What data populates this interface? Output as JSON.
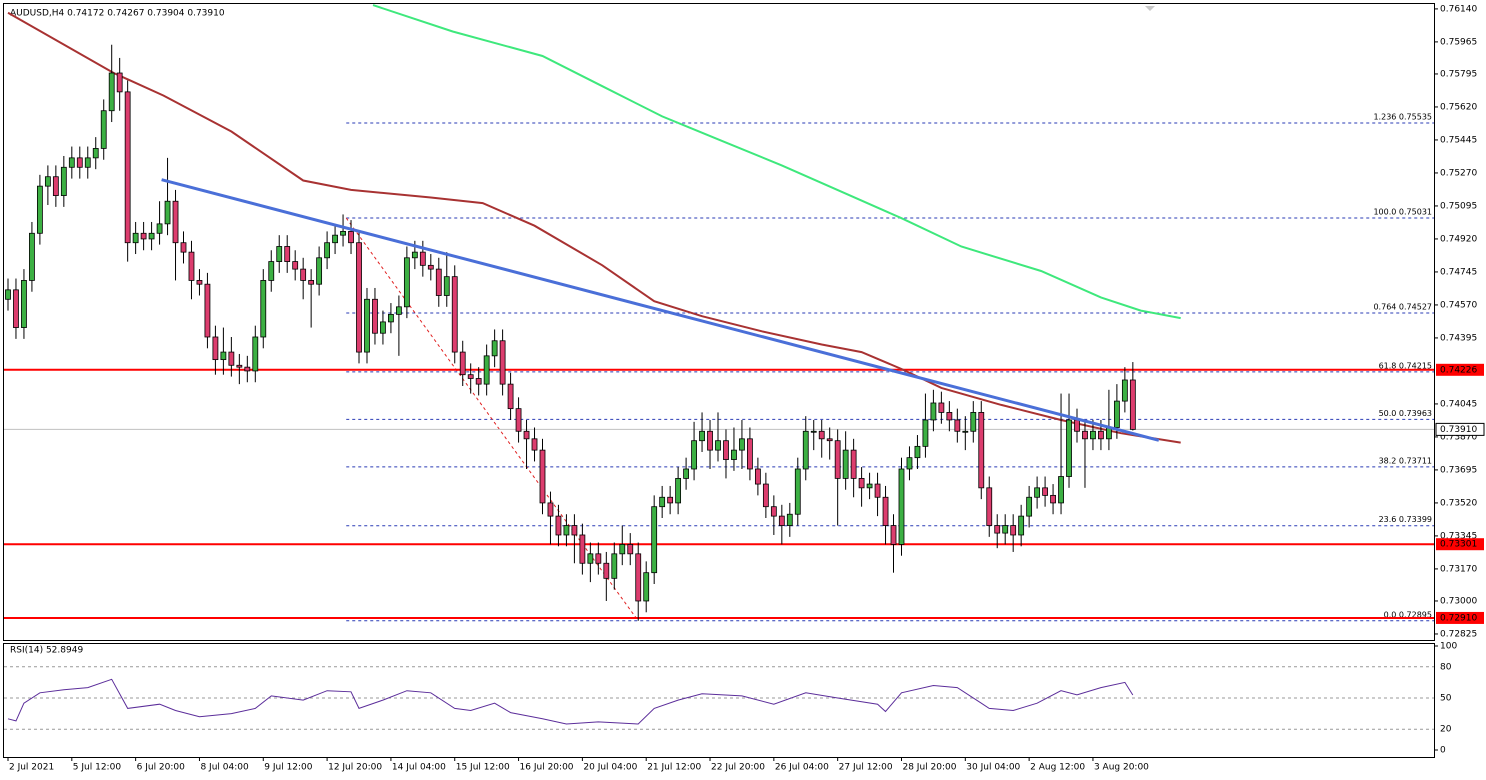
{
  "chart_data": {
    "type": "candlestick",
    "title": "AUDUSD,H4  0.74172 0.74267 0.73904 0.73910",
    "up_color": "#3cb043",
    "down_color": "#dc3d6e",
    "ylim": [
      0.72793,
      0.76166
    ],
    "yticks": [
      {
        "value": 0.7614,
        "label": "0.76140"
      },
      0.75965,
      0.75795,
      {
        "value": 0.7562,
        "label": "0.75620"
      },
      0.75445,
      {
        "value": 0.7527,
        "label": "0.75270"
      },
      0.75095,
      {
        "value": 0.7492,
        "label": "0.74920"
      },
      0.74745,
      {
        "value": 0.7457,
        "label": "0.74570"
      },
      0.74395,
      0.74045,
      {
        "value": 0.7387,
        "label": "0.73870"
      },
      0.73695,
      {
        "value": 0.7352,
        "label": "0.73520"
      },
      0.73345,
      {
        "value": 0.7317,
        "label": "0.73170"
      },
      {
        "value": 0.73,
        "label": "0.73000"
      },
      0.72825
    ],
    "xlim": [
      -0.5,
      178.75
    ],
    "xticks": [
      {
        "value": 0,
        "label": "2 Jul 2021"
      },
      {
        "value": 8,
        "label": "5 Jul 12:00"
      },
      {
        "value": 16,
        "label": "6 Jul 20:00"
      },
      {
        "value": 24,
        "label": "8 Jul 04:00"
      },
      {
        "value": 32,
        "label": "9 Jul 12:00"
      },
      {
        "value": 40,
        "label": "12 Jul 20:00"
      },
      {
        "value": 48,
        "label": "14 Jul 04:00"
      },
      {
        "value": 56,
        "label": "15 Jul 12:00"
      },
      {
        "value": 64,
        "label": "16 Jul 20:00"
      },
      {
        "value": 72,
        "label": "20 Jul 04:00"
      },
      {
        "value": 80,
        "label": "21 Jul 12:00"
      },
      {
        "value": 88,
        "label": "22 Jul 20:00"
      },
      {
        "value": 96,
        "label": "26 Jul 04:00"
      },
      {
        "value": 104,
        "label": "27 Jul 12:00"
      },
      {
        "value": 112,
        "label": "28 Jul 20:00"
      },
      {
        "value": 120,
        "label": "30 Jul 04:00"
      },
      {
        "value": 128,
        "label": "2 Aug 12:00"
      },
      {
        "value": 136,
        "label": "3 Aug 20:00"
      }
    ],
    "candles": {
      "open": [
        0.746,
        0.7465,
        0.7445,
        0.747,
        0.7495,
        0.752,
        0.7525,
        0.7515,
        0.753,
        0.7535,
        0.753,
        0.7535,
        0.754,
        0.756,
        0.758,
        0.757,
        0.749,
        0.7495,
        0.7492,
        0.7495,
        0.75,
        0.7512,
        0.749,
        0.7485,
        0.747,
        0.7468,
        0.744,
        0.7428,
        0.7432,
        0.7425,
        0.7424,
        0.7422,
        0.744,
        0.747,
        0.748,
        0.7488,
        0.748,
        0.7476,
        0.747,
        0.7468,
        0.7482,
        0.749,
        0.7494,
        0.7496,
        0.749,
        0.7432,
        0.746,
        0.7442,
        0.7448,
        0.7452,
        0.7456,
        0.7482,
        0.7485,
        0.7478,
        0.7476,
        0.7462,
        0.7472,
        0.7432,
        0.742,
        0.7418,
        0.7415,
        0.743,
        0.7438,
        0.7415,
        0.7402,
        0.739,
        0.7386,
        0.738,
        0.7352,
        0.7345,
        0.7335,
        0.734,
        0.7335,
        0.732,
        0.7325,
        0.732,
        0.7312,
        0.7325,
        0.733,
        0.7325,
        0.73,
        0.7315,
        0.735,
        0.7355,
        0.7352,
        0.7365,
        0.737,
        0.7385,
        0.739,
        0.738,
        0.7385,
        0.7375,
        0.738,
        0.7386,
        0.737,
        0.7362,
        0.735,
        0.7345,
        0.734,
        0.7346,
        0.737,
        0.739,
        0.739,
        0.7386,
        0.7385,
        0.7365,
        0.738,
        0.7365,
        0.736,
        0.7362,
        0.7355,
        0.734,
        0.733,
        0.737,
        0.7376,
        0.7382,
        0.7396,
        0.7405,
        0.74,
        0.7396,
        0.739,
        0.739,
        0.74,
        0.736,
        0.734,
        0.7336,
        0.734,
        0.7335,
        0.7345,
        0.7355,
        0.736,
        0.7356,
        0.7352,
        0.7366,
        0.7396,
        0.739,
        0.7386,
        0.739,
        0.7386,
        0.7392,
        0.7406,
        0.74172
      ],
      "high": [
        0.7471,
        0.7471,
        0.7476,
        0.7501,
        0.7526,
        0.7531,
        0.7531,
        0.7536,
        0.7541,
        0.7541,
        0.7541,
        0.7546,
        0.7566,
        0.7595,
        0.7588,
        0.7576,
        0.7501,
        0.7501,
        0.7501,
        0.7512,
        0.7535,
        0.7518,
        0.7496,
        0.7491,
        0.7476,
        0.7474,
        0.7446,
        0.7445,
        0.744,
        0.7431,
        0.743,
        0.7446,
        0.7476,
        0.7486,
        0.7494,
        0.7494,
        0.7486,
        0.7482,
        0.7476,
        0.7488,
        0.7496,
        0.75,
        0.7505,
        0.7502,
        0.7496,
        0.7466,
        0.7466,
        0.7454,
        0.7458,
        0.7462,
        0.7488,
        0.7491,
        0.7491,
        0.7484,
        0.7482,
        0.7485,
        0.7478,
        0.7438,
        0.7426,
        0.7424,
        0.7436,
        0.7444,
        0.7444,
        0.7421,
        0.7408,
        0.7396,
        0.7392,
        0.7386,
        0.7358,
        0.7351,
        0.7346,
        0.7346,
        0.7341,
        0.7331,
        0.7331,
        0.7326,
        0.7331,
        0.734,
        0.7336,
        0.7331,
        0.7321,
        0.7356,
        0.7361,
        0.7361,
        0.7371,
        0.7376,
        0.7395,
        0.74,
        0.7396,
        0.74,
        0.7391,
        0.7392,
        0.7396,
        0.7392,
        0.7376,
        0.7368,
        0.7356,
        0.7351,
        0.7352,
        0.7376,
        0.7398,
        0.7396,
        0.7396,
        0.7392,
        0.7391,
        0.739,
        0.7386,
        0.7371,
        0.7368,
        0.7368,
        0.7361,
        0.7346,
        0.7376,
        0.7382,
        0.7388,
        0.741,
        0.7412,
        0.7411,
        0.7406,
        0.7402,
        0.7398,
        0.7406,
        0.7406,
        0.7366,
        0.7346,
        0.7346,
        0.7346,
        0.7351,
        0.7361,
        0.7366,
        0.7366,
        0.7362,
        0.741,
        0.741,
        0.7402,
        0.7396,
        0.7396,
        0.7396,
        0.7412,
        0.7415,
        0.7424,
        0.74267
      ],
      "low": [
        0.7454,
        0.7439,
        0.7439,
        0.7464,
        0.7489,
        0.751,
        0.7509,
        0.7509,
        0.7524,
        0.7524,
        0.7524,
        0.7529,
        0.7534,
        0.7554,
        0.756,
        0.748,
        0.7484,
        0.7486,
        0.7486,
        0.7489,
        0.7494,
        0.747,
        0.7479,
        0.746,
        0.7462,
        0.7434,
        0.742,
        0.742,
        0.7419,
        0.7415,
        0.7416,
        0.7416,
        0.7434,
        0.7464,
        0.7474,
        0.7474,
        0.747,
        0.746,
        0.7445,
        0.7462,
        0.7476,
        0.7484,
        0.7488,
        0.7484,
        0.7426,
        0.7426,
        0.7436,
        0.7436,
        0.7442,
        0.743,
        0.745,
        0.7476,
        0.7472,
        0.747,
        0.7456,
        0.7456,
        0.7426,
        0.7414,
        0.741,
        0.7409,
        0.7409,
        0.7424,
        0.7409,
        0.7396,
        0.7384,
        0.737,
        0.7374,
        0.7346,
        0.733,
        0.7329,
        0.7329,
        0.732,
        0.7314,
        0.731,
        0.7314,
        0.73,
        0.7306,
        0.7319,
        0.7319,
        0.72895,
        0.7294,
        0.7309,
        0.7344,
        0.7346,
        0.7346,
        0.7359,
        0.7364,
        0.7379,
        0.737,
        0.7374,
        0.7365,
        0.7369,
        0.737,
        0.7364,
        0.7356,
        0.7344,
        0.7335,
        0.733,
        0.7334,
        0.734,
        0.7364,
        0.738,
        0.7376,
        0.7375,
        0.734,
        0.7359,
        0.7355,
        0.735,
        0.7354,
        0.7345,
        0.733,
        0.7315,
        0.7324,
        0.7364,
        0.737,
        0.7376,
        0.739,
        0.7394,
        0.739,
        0.7384,
        0.738,
        0.7384,
        0.7354,
        0.7334,
        0.7328,
        0.733,
        0.7326,
        0.7329,
        0.7339,
        0.7349,
        0.735,
        0.7346,
        0.7346,
        0.736,
        0.7384,
        0.736,
        0.738,
        0.738,
        0.738,
        0.7386,
        0.74,
        0.73904
      ],
      "close": [
        0.7465,
        0.7445,
        0.747,
        0.7495,
        0.752,
        0.7525,
        0.7515,
        0.753,
        0.7535,
        0.753,
        0.7535,
        0.754,
        0.756,
        0.758,
        0.757,
        0.749,
        0.7495,
        0.7492,
        0.7495,
        0.75,
        0.7512,
        0.749,
        0.7485,
        0.747,
        0.7468,
        0.744,
        0.7428,
        0.7432,
        0.7425,
        0.7424,
        0.7422,
        0.744,
        0.747,
        0.748,
        0.7488,
        0.748,
        0.7476,
        0.747,
        0.7468,
        0.7482,
        0.749,
        0.7494,
        0.7496,
        0.749,
        0.7432,
        0.746,
        0.7442,
        0.7448,
        0.7452,
        0.7456,
        0.7482,
        0.7485,
        0.7478,
        0.7476,
        0.7462,
        0.7472,
        0.7432,
        0.742,
        0.7418,
        0.7415,
        0.743,
        0.7438,
        0.7415,
        0.7402,
        0.739,
        0.7386,
        0.738,
        0.7352,
        0.7345,
        0.7335,
        0.734,
        0.7335,
        0.732,
        0.7325,
        0.732,
        0.7312,
        0.7325,
        0.733,
        0.7325,
        0.73,
        0.7315,
        0.735,
        0.7355,
        0.7352,
        0.7365,
        0.737,
        0.7385,
        0.739,
        0.738,
        0.7385,
        0.7375,
        0.738,
        0.7386,
        0.737,
        0.7362,
        0.735,
        0.7345,
        0.734,
        0.7346,
        0.737,
        0.739,
        0.739,
        0.7386,
        0.7385,
        0.7365,
        0.738,
        0.7365,
        0.736,
        0.7362,
        0.7355,
        0.734,
        0.733,
        0.737,
        0.7376,
        0.7382,
        0.7396,
        0.7405,
        0.74,
        0.7396,
        0.739,
        0.739,
        0.74,
        0.736,
        0.734,
        0.7336,
        0.734,
        0.7335,
        0.7345,
        0.7355,
        0.736,
        0.7356,
        0.7352,
        0.7366,
        0.7396,
        0.739,
        0.7386,
        0.739,
        0.7386,
        0.7392,
        0.7406,
        0.74172,
        0.7391
      ]
    },
    "ma_lines": [
      {
        "color": "#a83232",
        "x": [
          0,
          13.25,
          19.5,
          28,
          37,
          43,
          53,
          59.5,
          66,
          74.5,
          81,
          87,
          94.5,
          102,
          107,
          112,
          117,
          124.5,
          132,
          139.5,
          147
        ],
        "values": [
          0.7612,
          0.758,
          0.7568,
          0.7549,
          0.7523,
          0.7518,
          0.7514,
          0.7511,
          0.7499,
          0.7478,
          0.7459,
          0.7451,
          0.7443,
          0.7436,
          0.7432,
          0.7423,
          0.7413,
          0.7404,
          0.7396,
          0.7389,
          0.7384
        ]
      },
      {
        "color": "#3ee87c",
        "x": [
          45.75,
          55.75,
          67,
          74.5,
          82,
          89.5,
          97,
          104.5,
          112,
          119.5,
          129.5,
          137,
          142,
          147
        ],
        "values": [
          0.7616,
          0.7602,
          0.7589,
          0.7573,
          0.7557,
          0.7544,
          0.7531,
          0.7517,
          0.7503,
          0.7488,
          0.7475,
          0.7461,
          0.7454,
          0.745
        ]
      }
    ],
    "trendline": {
      "color": "#4a6fd8",
      "x": [
        19.25,
        144.25
      ],
      "values": [
        0.75234,
        0.73852
      ]
    },
    "fibo": {
      "color": "#e02020",
      "level_color": "#2a3bb5",
      "x": [
        42.4,
        79
      ],
      "values": [
        0.75031,
        0.72895
      ],
      "levels": [
        {
          "value": 0.75535,
          "label": "1.236 0.75535"
        },
        {
          "value": 0.75031,
          "label": "100.0 0.75031"
        },
        {
          "value": 0.74527,
          "label": "0.764 0.74527"
        },
        {
          "value": 0.74215,
          "label": "61.8 0.74215"
        },
        {
          "value": 0.73963,
          "label": "50.0 0.73963"
        },
        {
          "value": 0.73711,
          "label": "38.2 0.73711"
        },
        {
          "value": 0.73399,
          "label": "23.6 0.73399"
        },
        {
          "value": 0.72895,
          "label": "0.0 0.72895"
        }
      ]
    },
    "hlines": [
      {
        "value": 0.74226,
        "color": "#ff0000"
      },
      {
        "value": 0.73301,
        "color": "#ff0000"
      },
      {
        "value": {
          "value": 0.7291,
          "label": "0.72910"
        },
        "color": "#ff0000"
      }
    ],
    "current_price": {
      "value": 0.7391,
      "label": "0.73910",
      "color": "#c0c0c0"
    },
    "rsi": {
      "label": "RSI(14) 52.8949",
      "color": "#5b2d9a",
      "ylim": [
        0,
        100
      ],
      "yticks": [
        100,
        80,
        50,
        20,
        0
      ],
      "x": [
        0,
        1,
        2,
        4,
        7,
        10,
        13,
        15,
        19,
        21,
        24,
        28,
        31,
        33,
        37,
        40,
        43,
        44,
        47,
        50,
        53,
        56,
        58,
        61,
        63,
        67,
        70,
        74,
        79,
        81,
        84,
        87,
        92,
        96,
        100,
        104,
        109,
        110,
        112,
        116,
        119,
        122,
        123,
        126,
        129,
        132,
        134,
        137,
        140,
        141
      ],
      "values": [
        30,
        28,
        45,
        55,
        58,
        60,
        68,
        40,
        44,
        38,
        32,
        35,
        40,
        52,
        48,
        57,
        56,
        40,
        48,
        57,
        55,
        40,
        38,
        45,
        36,
        30,
        25,
        27,
        25,
        40,
        48,
        54,
        52,
        44,
        55,
        50,
        44,
        37,
        55,
        62,
        60,
        45,
        40,
        38,
        45,
        57,
        53,
        60,
        65,
        52.8949
      ]
    }
  }
}
